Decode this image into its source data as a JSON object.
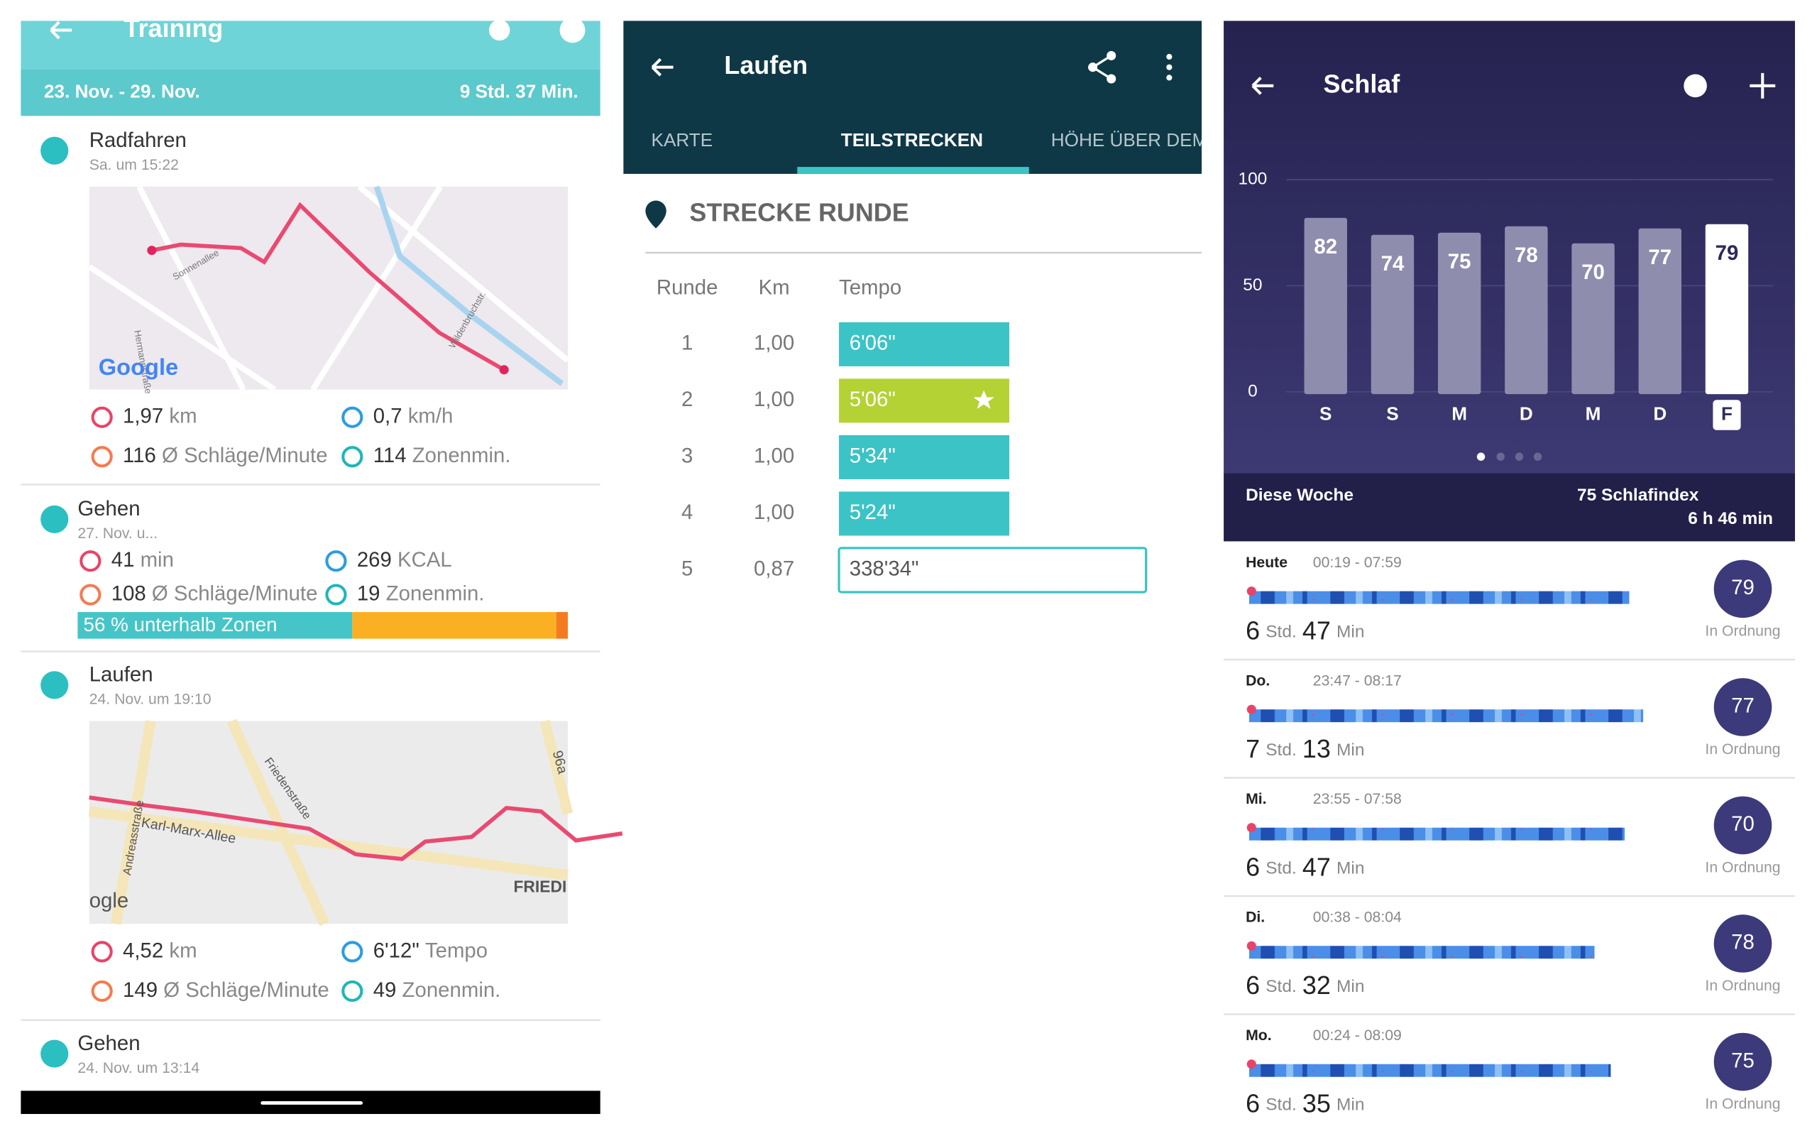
{
  "training": {
    "title": "Training",
    "range": "23. Nov. - 29. Nov.",
    "total": "9 Std. 37 Min.",
    "activities": [
      {
        "name": "Radfahren",
        "time": "Sa. um 15:22",
        "map_labels": [
          "Sonnenallee",
          "Hermannstraße",
          "Wildenbruchstr.",
          "Google"
        ],
        "stats": [
          {
            "value": "1,97",
            "unit": "km"
          },
          {
            "value": "0,7",
            "unit": "km/h"
          },
          {
            "value": "116",
            "unit": "Ø Schläge/Minute"
          },
          {
            "value": "114",
            "unit": "Zonenmin."
          }
        ]
      },
      {
        "name": "Gehen",
        "time": "27. Nov. u...",
        "stats": [
          {
            "value": "41",
            "unit": "min"
          },
          {
            "value": "269",
            "unit": "KCAL"
          },
          {
            "value": "108",
            "unit": "Ø Schläge/Minute"
          },
          {
            "value": "19",
            "unit": "Zonenmin."
          }
        ],
        "zone_bar": "56 % unterhalb Zonen"
      },
      {
        "name": "Laufen",
        "time": "24. Nov. um 19:10",
        "map_labels": [
          "Friedenstraße",
          "Karl-Marx-Allee",
          "Andreasstraße",
          "FRIEDI",
          "96a",
          "ogle"
        ],
        "stats": [
          {
            "value": "4,52",
            "unit": "km"
          },
          {
            "value": "6'12\"",
            "unit": "Tempo"
          },
          {
            "value": "149",
            "unit": "Ø Schläge/Minute"
          },
          {
            "value": "49",
            "unit": "Zonenmin."
          }
        ]
      },
      {
        "name": "Gehen",
        "time": "24. Nov. um 13:14"
      }
    ]
  },
  "run": {
    "title": "Laufen",
    "tabs": [
      "KARTE",
      "TEILSTRECKEN",
      "HÖHE ÜBER DEM"
    ],
    "section": "STRECKE RUNDE",
    "headers": [
      "Runde",
      "Km",
      "Tempo"
    ],
    "rows": [
      [
        "1",
        "1,00",
        "6'06\""
      ],
      [
        "2",
        "1,00",
        "5'06\""
      ],
      [
        "3",
        "1,00",
        "5'34\""
      ],
      [
        "4",
        "1,00",
        "5'24\""
      ],
      [
        "5",
        "0,87",
        "338'34\""
      ]
    ]
  },
  "sleep": {
    "title": "Schlaf",
    "chart": {
      "type": "bar",
      "categories": [
        "S",
        "S",
        "M",
        "D",
        "M",
        "D",
        "F"
      ],
      "values": [
        82,
        74,
        75,
        78,
        70,
        77,
        79
      ],
      "ylim": [
        0,
        100
      ],
      "yticks": [
        0,
        50,
        100
      ],
      "color": "#8f8dad",
      "highlight_color": "#ffffff"
    },
    "summary": {
      "label": "Diese Woche",
      "index": "75 Schlafindex",
      "duration": "6 h 46 min"
    },
    "nights": [
      {
        "day": "Heute",
        "range": "00:19 - 07:59",
        "hours": "6",
        "hours_unit": "Std.",
        "minutes": "47",
        "minutes_unit": "Min",
        "score": "79",
        "status": "In Ordnung"
      },
      {
        "day": "Do.",
        "range": "23:47 - 08:17",
        "hours": "7",
        "hours_unit": "Std.",
        "minutes": "13",
        "minutes_unit": "Min",
        "score": "77",
        "status": "In Ordnung"
      },
      {
        "day": "Mi.",
        "range": "23:55 - 07:58",
        "hours": "6",
        "hours_unit": "Std.",
        "minutes": "47",
        "minutes_unit": "Min",
        "score": "70",
        "status": "In Ordnung"
      },
      {
        "day": "Di.",
        "range": "00:38 - 08:04",
        "hours": "6",
        "hours_unit": "Std.",
        "minutes": "32",
        "minutes_unit": "Min",
        "score": "78",
        "status": "In Ordnung"
      },
      {
        "day": "Mo.",
        "range": "00:24 - 08:09",
        "hours": "6",
        "hours_unit": "Std.",
        "minutes": "35",
        "minutes_unit": "Min",
        "score": "75",
        "status": "In Ordnung"
      }
    ]
  }
}
